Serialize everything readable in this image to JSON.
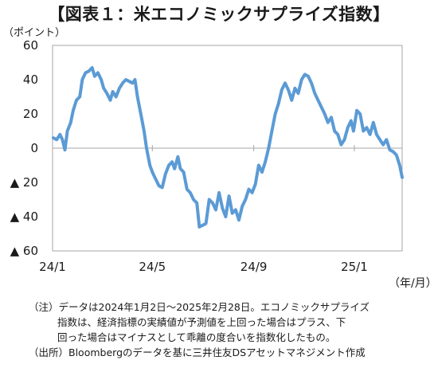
{
  "title": "【図表１：米エコノミックサプライズ指数】",
  "chart_data": {
    "type": "line",
    "unit_label": "（ポイント）",
    "x_unit_label": "（年/月）",
    "y_ticks": [
      "60",
      "40",
      "20",
      "0",
      "▲ 20",
      "▲ 40",
      "▲ 60"
    ],
    "ylim": [
      -60,
      60
    ],
    "y_tick_step": 20,
    "x_ticks": [
      {
        "label": "24/1",
        "x": "2024-01-01"
      },
      {
        "label": "24/5",
        "x": "2024-05-01"
      },
      {
        "label": "24/9",
        "x": "2024-09-01"
      },
      {
        "label": "25/1",
        "x": "2025-01-01"
      }
    ],
    "xlim": [
      "2024-01-01",
      "2025-02-28"
    ],
    "grid": false,
    "line_color": "#5b9bd5",
    "series": [
      {
        "values": [
          [
            "2024-01-02",
            6
          ],
          [
            "2024-01-06",
            5
          ],
          [
            "2024-01-10",
            8
          ],
          [
            "2024-01-13",
            5
          ],
          [
            "2024-01-16",
            -1
          ],
          [
            "2024-01-19",
            10
          ],
          [
            "2024-01-23",
            15
          ],
          [
            "2024-01-26",
            22
          ],
          [
            "2024-01-30",
            28
          ],
          [
            "2024-02-03",
            30
          ],
          [
            "2024-02-06",
            40
          ],
          [
            "2024-02-10",
            44
          ],
          [
            "2024-02-14",
            45
          ],
          [
            "2024-02-18",
            47
          ],
          [
            "2024-02-21",
            42
          ],
          [
            "2024-02-25",
            44
          ],
          [
            "2024-02-29",
            40
          ],
          [
            "2024-03-03",
            35
          ],
          [
            "2024-03-07",
            32
          ],
          [
            "2024-03-11",
            28
          ],
          [
            "2024-03-14",
            33
          ],
          [
            "2024-03-18",
            30
          ],
          [
            "2024-03-22",
            35
          ],
          [
            "2024-03-26",
            38
          ],
          [
            "2024-03-30",
            40
          ],
          [
            "2024-04-03",
            39
          ],
          [
            "2024-04-07",
            38
          ],
          [
            "2024-04-10",
            40
          ],
          [
            "2024-04-13",
            30
          ],
          [
            "2024-04-17",
            20
          ],
          [
            "2024-04-21",
            10
          ],
          [
            "2024-04-24",
            0
          ],
          [
            "2024-04-28",
            -10
          ],
          [
            "2024-05-01",
            -14
          ],
          [
            "2024-05-05",
            -18
          ],
          [
            "2024-05-09",
            -22
          ],
          [
            "2024-05-13",
            -23
          ],
          [
            "2024-05-17",
            -15
          ],
          [
            "2024-05-21",
            -10
          ],
          [
            "2024-05-25",
            -8
          ],
          [
            "2024-05-28",
            -12
          ],
          [
            "2024-06-01",
            -5
          ],
          [
            "2024-06-04",
            -12
          ],
          [
            "2024-06-08",
            -14
          ],
          [
            "2024-06-12",
            -24
          ],
          [
            "2024-06-16",
            -26
          ],
          [
            "2024-06-20",
            -30
          ],
          [
            "2024-06-24",
            -32
          ],
          [
            "2024-06-27",
            -46
          ],
          [
            "2024-07-01",
            -45
          ],
          [
            "2024-07-05",
            -44
          ],
          [
            "2024-07-09",
            -30
          ],
          [
            "2024-07-13",
            -32
          ],
          [
            "2024-07-17",
            -36
          ],
          [
            "2024-07-21",
            -26
          ],
          [
            "2024-07-25",
            -35
          ],
          [
            "2024-07-29",
            -40
          ],
          [
            "2024-08-02",
            -28
          ],
          [
            "2024-08-06",
            -38
          ],
          [
            "2024-08-10",
            -36
          ],
          [
            "2024-08-14",
            -42
          ],
          [
            "2024-08-18",
            -34
          ],
          [
            "2024-08-22",
            -30
          ],
          [
            "2024-08-26",
            -24
          ],
          [
            "2024-08-30",
            -26
          ],
          [
            "2024-09-03",
            -21
          ],
          [
            "2024-09-07",
            -10
          ],
          [
            "2024-09-11",
            -14
          ],
          [
            "2024-09-15",
            -8
          ],
          [
            "2024-09-19",
            0
          ],
          [
            "2024-09-23",
            10
          ],
          [
            "2024-09-27",
            20
          ],
          [
            "2024-10-01",
            26
          ],
          [
            "2024-10-05",
            34
          ],
          [
            "2024-10-09",
            38
          ],
          [
            "2024-10-13",
            34
          ],
          [
            "2024-10-17",
            28
          ],
          [
            "2024-10-21",
            35
          ],
          [
            "2024-10-25",
            32
          ],
          [
            "2024-10-29",
            40
          ],
          [
            "2024-11-02",
            43
          ],
          [
            "2024-11-06",
            42
          ],
          [
            "2024-11-10",
            38
          ],
          [
            "2024-11-14",
            32
          ],
          [
            "2024-11-18",
            28
          ],
          [
            "2024-11-22",
            24
          ],
          [
            "2024-11-26",
            20
          ],
          [
            "2024-11-30",
            15
          ],
          [
            "2024-12-04",
            18
          ],
          [
            "2024-12-08",
            10
          ],
          [
            "2024-12-12",
            8
          ],
          [
            "2024-12-16",
            2
          ],
          [
            "2024-12-20",
            5
          ],
          [
            "2024-12-24",
            12
          ],
          [
            "2024-12-28",
            16
          ],
          [
            "2024-12-31",
            10
          ],
          [
            "2025-01-04",
            22
          ],
          [
            "2025-01-08",
            20
          ],
          [
            "2025-01-12",
            10
          ],
          [
            "2025-01-16",
            12
          ],
          [
            "2025-01-20",
            8
          ],
          [
            "2025-01-24",
            15
          ],
          [
            "2025-01-28",
            8
          ],
          [
            "2025-02-01",
            5
          ],
          [
            "2025-02-05",
            2
          ],
          [
            "2025-02-09",
            5
          ],
          [
            "2025-02-13",
            -1
          ],
          [
            "2025-02-17",
            -2
          ],
          [
            "2025-02-21",
            -4
          ],
          [
            "2025-02-25",
            -10
          ],
          [
            "2025-02-28",
            -17
          ]
        ]
      }
    ]
  },
  "notes": [
    "（注）データは2024年1月2日～2025年2月28日。エコノミックサプライズ",
    "指数は、経済指標の実績値が予測値を上回った場合はプラス、下",
    "回った場合はマイナスとして乖離の度合いを指数化したもの。",
    "（出所）Bloombergのデータを基に三井住友DSアセットマネジメント作成"
  ]
}
